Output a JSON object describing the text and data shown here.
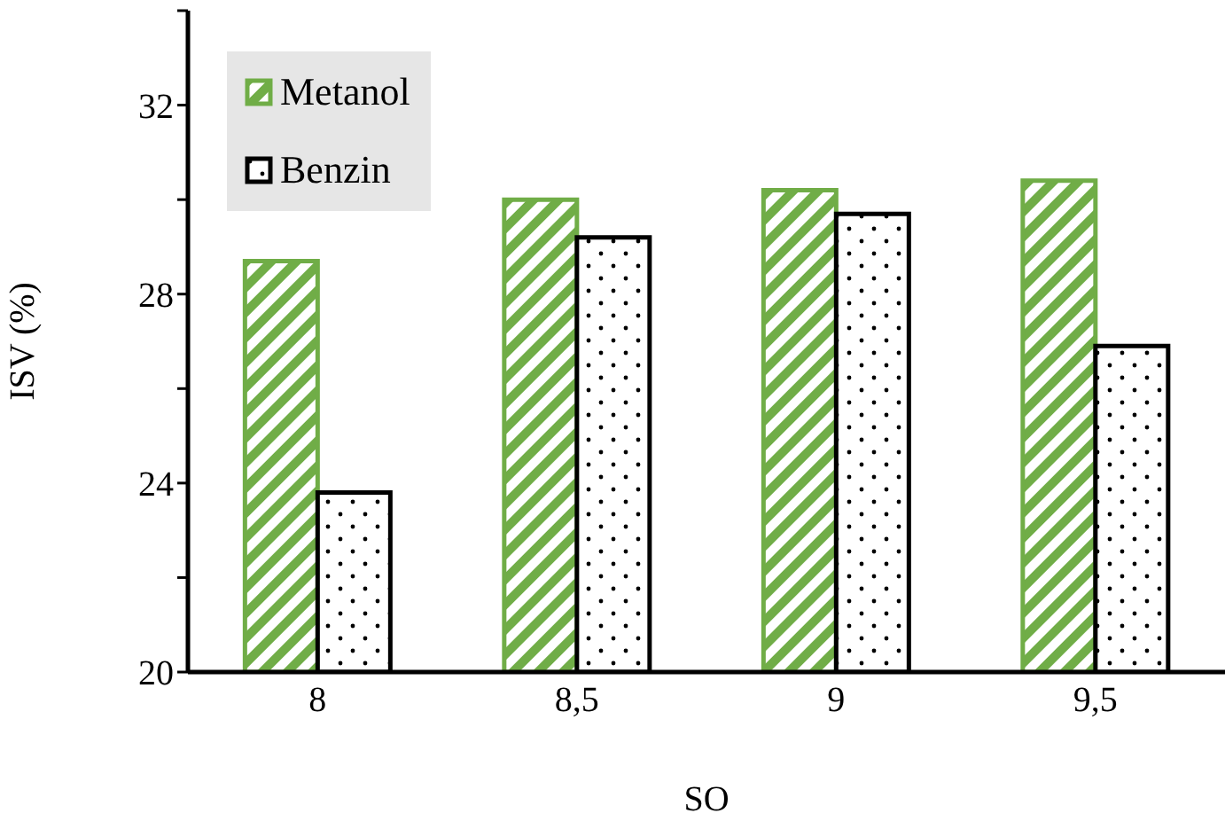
{
  "chart_data": {
    "type": "bar",
    "xlabel": "SO",
    "ylabel": "ISV (%)",
    "categories": [
      "8",
      "8,5",
      "9",
      "9,5"
    ],
    "series": [
      {
        "name": "Metanol",
        "color": "#70ad47",
        "values": [
          28.7,
          30.0,
          30.2,
          30.4
        ]
      },
      {
        "name": "Benzin",
        "color": "#000000",
        "values": [
          23.8,
          29.2,
          29.7,
          26.9
        ]
      }
    ],
    "ylim": [
      20,
      34
    ],
    "yticks": [
      20,
      {
        "value": 22,
        "label": null
      },
      24,
      {
        "value": 26,
        "label": null
      },
      28,
      {
        "value": 30,
        "label": null
      },
      32,
      {
        "value": 34,
        "label": null
      }
    ],
    "grid": false,
    "legend": "top left"
  }
}
